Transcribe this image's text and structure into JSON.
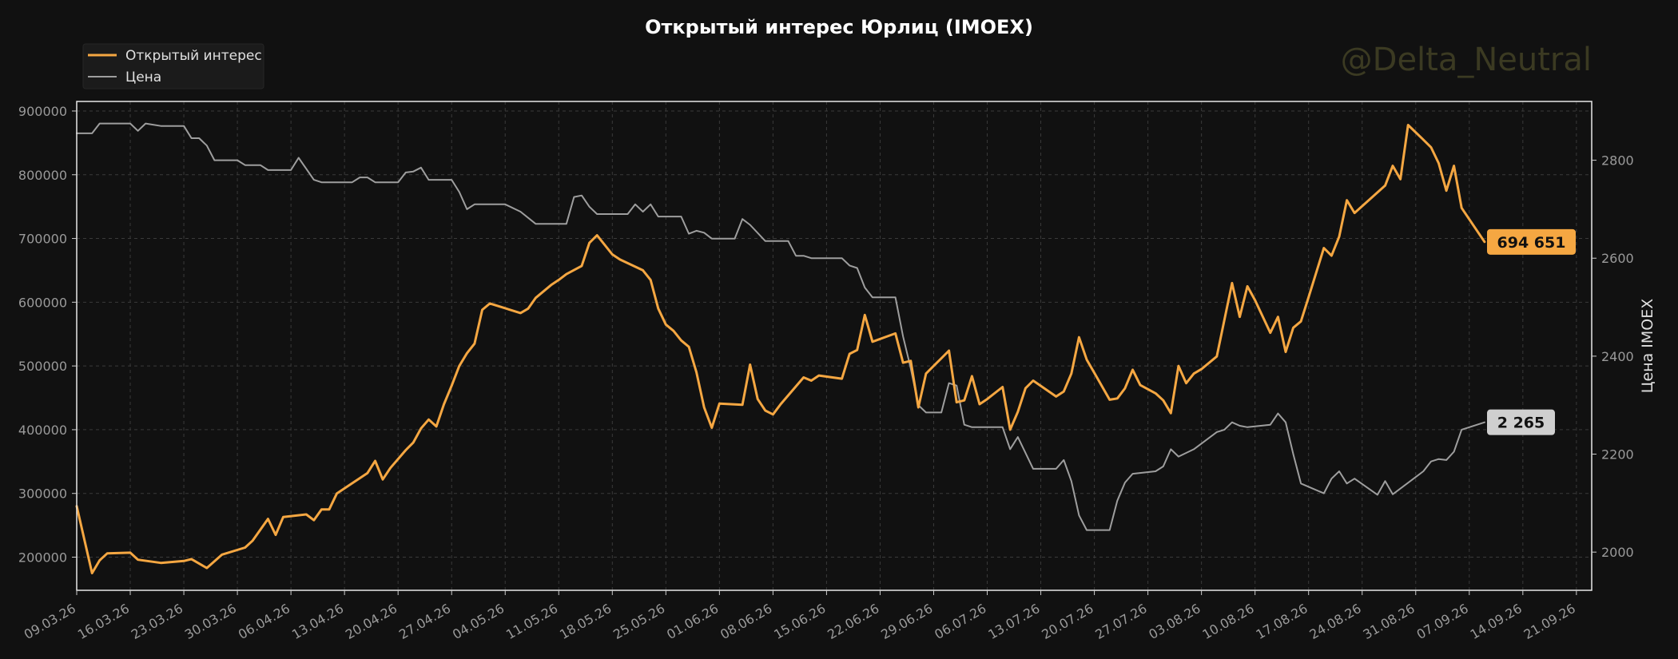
{
  "chart_data": {
    "type": "line",
    "title": "Открытый интерес Юрлиц (IMOEX)",
    "watermark": "@Delta_Neutral",
    "ylabel_right": "Цена IMOEX",
    "legend_placement": "top-left",
    "grid": true,
    "colors": {
      "oi": "#F5A742",
      "price": "#9E9E9E",
      "background": "#111111"
    },
    "ylim_left": [
      148000,
      915000
    ],
    "ylim_right": [
      1922,
      2920
    ],
    "xlim": [
      "09.03.26",
      "23.09.26"
    ],
    "x_ticks": [
      "09.03.26",
      "16.03.26",
      "23.03.26",
      "30.03.26",
      "06.04.26",
      "13.04.26",
      "20.04.26",
      "27.04.26",
      "04.05.26",
      "11.05.26",
      "18.05.26",
      "25.05.26",
      "01.06.26",
      "08.06.26",
      "15.06.26",
      "22.06.26",
      "29.06.26",
      "06.07.26",
      "13.07.26",
      "20.07.26",
      "27.07.26",
      "03.08.26",
      "10.08.26",
      "17.08.26",
      "24.08.26",
      "31.08.26",
      "07.09.26",
      "14.09.26",
      "21.09.26"
    ],
    "y_ticks_left": [
      "200000",
      "300000",
      "400000",
      "500000",
      "600000",
      "700000",
      "800000",
      "900000"
    ],
    "y_ticks_right": [
      "2000",
      "2200",
      "2400",
      "2600",
      "2800"
    ],
    "series": [
      {
        "name": "Открытый интерес",
        "axis": "left",
        "last_label": "694 651",
        "points": [
          [
            "09.03.26",
            280000
          ],
          [
            "11.03.26",
            175000
          ],
          [
            "12.03.26",
            195000
          ],
          [
            "13.03.26",
            206000
          ],
          [
            "16.03.26",
            207000
          ],
          [
            "17.03.26",
            196000
          ],
          [
            "20.03.26",
            191000
          ],
          [
            "23.03.26",
            194000
          ],
          [
            "24.03.26",
            197000
          ],
          [
            "26.03.26",
            183000
          ],
          [
            "28.03.26",
            204000
          ],
          [
            "31.03.26",
            215000
          ],
          [
            "01.04.26",
            226000
          ],
          [
            "03.04.26",
            260000
          ],
          [
            "04.04.26",
            235000
          ],
          [
            "05.04.26",
            263000
          ],
          [
            "08.04.26",
            267000
          ],
          [
            "09.04.26",
            258000
          ],
          [
            "10.04.26",
            275000
          ],
          [
            "11.04.26",
            275000
          ],
          [
            "12.04.26",
            300000
          ],
          [
            "14.04.26",
            316000
          ],
          [
            "16.04.26",
            332000
          ],
          [
            "17.04.26",
            351000
          ],
          [
            "18.04.26",
            322000
          ],
          [
            "19.04.26",
            340000
          ],
          [
            "21.04.26",
            368000
          ],
          [
            "22.04.26",
            380000
          ],
          [
            "23.04.26",
            402000
          ],
          [
            "24.04.26",
            416000
          ],
          [
            "25.04.26",
            405000
          ],
          [
            "26.04.26",
            440000
          ],
          [
            "27.04.26",
            469000
          ],
          [
            "28.04.26",
            500000
          ],
          [
            "29.04.26",
            520000
          ],
          [
            "30.04.26",
            535000
          ],
          [
            "01.05.26",
            588000
          ],
          [
            "02.05.26",
            598000
          ],
          [
            "06.05.26",
            583000
          ],
          [
            "07.05.26",
            590000
          ],
          [
            "08.05.26",
            607000
          ],
          [
            "10.05.26",
            627000
          ],
          [
            "11.05.26",
            635000
          ],
          [
            "12.05.26",
            644000
          ],
          [
            "14.05.26",
            657000
          ],
          [
            "15.05.26",
            693000
          ],
          [
            "16.05.26",
            705000
          ],
          [
            "18.05.26",
            675000
          ],
          [
            "19.05.26",
            667000
          ],
          [
            "22.05.26",
            650000
          ],
          [
            "23.05.26",
            635000
          ],
          [
            "24.05.26",
            590000
          ],
          [
            "25.05.26",
            565000
          ],
          [
            "26.05.26",
            555000
          ],
          [
            "27.05.26",
            540000
          ],
          [
            "28.05.26",
            530000
          ],
          [
            "29.05.26",
            490000
          ],
          [
            "30.05.26",
            435000
          ],
          [
            "31.05.26",
            403000
          ],
          [
            "01.06.26",
            441000
          ],
          [
            "04.06.26",
            439000
          ],
          [
            "05.06.26",
            502000
          ],
          [
            "06.06.26",
            448000
          ],
          [
            "07.06.26",
            430000
          ],
          [
            "08.06.26",
            424000
          ],
          [
            "09.06.26",
            440000
          ],
          [
            "12.06.26",
            482000
          ],
          [
            "13.06.26",
            477000
          ],
          [
            "14.06.26",
            485000
          ],
          [
            "17.06.26",
            480000
          ],
          [
            "18.06.26",
            519000
          ],
          [
            "19.06.26",
            525000
          ],
          [
            "20.06.26",
            580000
          ],
          [
            "21.06.26",
            538000
          ],
          [
            "24.06.26",
            551000
          ],
          [
            "25.06.26",
            505000
          ],
          [
            "26.06.26",
            508000
          ],
          [
            "27.06.26",
            435000
          ],
          [
            "28.06.26",
            488000
          ],
          [
            "29.06.26",
            500000
          ],
          [
            "30.06.26",
            512000
          ],
          [
            "01.07.26",
            524000
          ],
          [
            "02.07.26",
            443000
          ],
          [
            "03.07.26",
            446000
          ],
          [
            "04.07.26",
            484000
          ],
          [
            "05.07.26",
            440000
          ],
          [
            "06.07.26",
            448000
          ],
          [
            "08.07.26",
            467000
          ],
          [
            "09.07.26",
            400000
          ],
          [
            "10.07.26",
            428000
          ],
          [
            "11.07.26",
            465000
          ],
          [
            "12.07.26",
            477000
          ],
          [
            "15.07.26",
            452000
          ],
          [
            "16.07.26",
            460000
          ],
          [
            "17.07.26",
            488000
          ],
          [
            "18.07.26",
            545000
          ],
          [
            "19.07.26",
            510000
          ],
          [
            "20.07.26",
            489000
          ],
          [
            "22.07.26",
            447000
          ],
          [
            "23.07.26",
            449000
          ],
          [
            "24.07.26",
            465000
          ],
          [
            "25.07.26",
            494000
          ],
          [
            "26.07.26",
            470000
          ],
          [
            "28.07.26",
            457000
          ],
          [
            "29.07.26",
            446000
          ],
          [
            "30.07.26",
            426000
          ],
          [
            "31.07.26",
            500000
          ],
          [
            "01.08.26",
            473000
          ],
          [
            "02.08.26",
            488000
          ],
          [
            "03.08.26",
            495000
          ],
          [
            "05.08.26",
            515000
          ],
          [
            "07.08.26",
            630000
          ],
          [
            "08.08.26",
            577000
          ],
          [
            "09.08.26",
            625000
          ],
          [
            "10.08.26",
            603000
          ],
          [
            "12.08.26",
            552000
          ],
          [
            "13.08.26",
            577000
          ],
          [
            "14.08.26",
            522000
          ],
          [
            "15.08.26",
            560000
          ],
          [
            "16.08.26",
            570000
          ],
          [
            "17.08.26",
            608000
          ],
          [
            "19.08.26",
            685000
          ],
          [
            "20.08.26",
            673000
          ],
          [
            "21.08.26",
            703000
          ],
          [
            "22.08.26",
            760000
          ],
          [
            "23.08.26",
            740000
          ],
          [
            "27.08.26",
            783000
          ],
          [
            "28.08.26",
            814000
          ],
          [
            "29.08.26",
            793000
          ],
          [
            "30.08.26",
            878000
          ],
          [
            "01.09.26",
            855000
          ],
          [
            "02.09.26",
            843000
          ],
          [
            "03.09.26",
            818000
          ],
          [
            "04.09.26",
            775000
          ],
          [
            "05.09.26",
            814000
          ],
          [
            "06.09.26",
            748000
          ],
          [
            "09.09.26",
            694651
          ]
        ]
      },
      {
        "name": "Цена",
        "axis": "right",
        "last_label": "2 265",
        "points": [
          [
            "09.03.26",
            2855
          ],
          [
            "11.03.26",
            2855
          ],
          [
            "12.03.26",
            2875
          ],
          [
            "16.03.26",
            2875
          ],
          [
            "17.03.26",
            2860
          ],
          [
            "18.03.26",
            2875
          ],
          [
            "20.03.26",
            2870
          ],
          [
            "23.03.26",
            2870
          ],
          [
            "24.03.26",
            2845
          ],
          [
            "25.03.26",
            2845
          ],
          [
            "26.03.26",
            2830
          ],
          [
            "27.03.26",
            2800
          ],
          [
            "30.03.26",
            2800
          ],
          [
            "31.03.26",
            2790
          ],
          [
            "02.04.26",
            2790
          ],
          [
            "03.04.26",
            2780
          ],
          [
            "06.04.26",
            2780
          ],
          [
            "07.04.26",
            2805
          ],
          [
            "09.04.26",
            2760
          ],
          [
            "10.04.26",
            2755
          ],
          [
            "14.04.26",
            2755
          ],
          [
            "15.04.26",
            2765
          ],
          [
            "16.04.26",
            2765
          ],
          [
            "17.04.26",
            2755
          ],
          [
            "20.04.26",
            2755
          ],
          [
            "21.04.26",
            2775
          ],
          [
            "22.04.26",
            2777
          ],
          [
            "23.04.26",
            2785
          ],
          [
            "24.04.26",
            2760
          ],
          [
            "27.04.26",
            2760
          ],
          [
            "28.04.26",
            2735
          ],
          [
            "29.04.26",
            2700
          ],
          [
            "30.04.26",
            2710
          ],
          [
            "04.05.26",
            2710
          ],
          [
            "06.05.26",
            2695
          ],
          [
            "08.05.26",
            2670
          ],
          [
            "11.05.26",
            2670
          ],
          [
            "12.05.26",
            2670
          ],
          [
            "13.05.26",
            2725
          ],
          [
            "14.05.26",
            2728
          ],
          [
            "15.05.26",
            2705
          ],
          [
            "16.05.26",
            2690
          ],
          [
            "19.05.26",
            2690
          ],
          [
            "20.05.26",
            2690
          ],
          [
            "21.05.26",
            2710
          ],
          [
            "22.05.26",
            2695
          ],
          [
            "23.05.26",
            2710
          ],
          [
            "24.05.26",
            2685
          ],
          [
            "27.05.26",
            2685
          ],
          [
            "28.05.26",
            2650
          ],
          [
            "29.05.26",
            2656
          ],
          [
            "30.05.26",
            2652
          ],
          [
            "31.05.26",
            2640
          ],
          [
            "03.06.26",
            2640
          ],
          [
            "04.06.26",
            2680
          ],
          [
            "05.06.26",
            2668
          ],
          [
            "07.06.26",
            2635
          ],
          [
            "10.06.26",
            2635
          ],
          [
            "11.06.26",
            2605
          ],
          [
            "12.06.26",
            2605
          ],
          [
            "13.06.26",
            2600
          ],
          [
            "17.06.26",
            2600
          ],
          [
            "18.06.26",
            2585
          ],
          [
            "19.06.26",
            2580
          ],
          [
            "20.06.26",
            2540
          ],
          [
            "21.06.26",
            2520
          ],
          [
            "24.06.26",
            2520
          ],
          [
            "25.06.26",
            2440
          ],
          [
            "26.06.26",
            2375
          ],
          [
            "27.06.26",
            2300
          ],
          [
            "28.06.26",
            2285
          ],
          [
            "29.06.26",
            2285
          ],
          [
            "30.06.26",
            2285
          ],
          [
            "01.07.26",
            2345
          ],
          [
            "02.07.26",
            2340
          ],
          [
            "03.07.26",
            2260
          ],
          [
            "04.07.26",
            2255
          ],
          [
            "05.07.26",
            2255
          ],
          [
            "08.07.26",
            2255
          ],
          [
            "09.07.26",
            2210
          ],
          [
            "10.07.26",
            2235
          ],
          [
            "12.07.26",
            2170
          ],
          [
            "15.07.26",
            2170
          ],
          [
            "16.07.26",
            2188
          ],
          [
            "17.07.26",
            2145
          ],
          [
            "18.07.26",
            2075
          ],
          [
            "19.07.26",
            2045
          ],
          [
            "22.07.26",
            2045
          ],
          [
            "23.07.26",
            2105
          ],
          [
            "24.07.26",
            2142
          ],
          [
            "25.07.26",
            2160
          ],
          [
            "28.07.26",
            2165
          ],
          [
            "29.07.26",
            2175
          ],
          [
            "30.07.26",
            2210
          ],
          [
            "31.07.26",
            2195
          ],
          [
            "02.08.26",
            2210
          ],
          [
            "05.08.26",
            2245
          ],
          [
            "06.08.26",
            2250
          ],
          [
            "07.08.26",
            2265
          ],
          [
            "08.08.26",
            2258
          ],
          [
            "09.08.26",
            2255
          ],
          [
            "12.08.26",
            2260
          ],
          [
            "13.08.26",
            2283
          ],
          [
            "14.08.26",
            2265
          ],
          [
            "15.08.26",
            2200
          ],
          [
            "16.08.26",
            2140
          ],
          [
            "19.08.26",
            2120
          ],
          [
            "20.08.26",
            2150
          ],
          [
            "21.08.26",
            2165
          ],
          [
            "22.08.26",
            2140
          ],
          [
            "23.08.26",
            2150
          ],
          [
            "26.08.26",
            2117
          ],
          [
            "27.08.26",
            2145
          ],
          [
            "28.08.26",
            2118
          ],
          [
            "01.09.26",
            2165
          ],
          [
            "02.09.26",
            2185
          ],
          [
            "03.09.26",
            2190
          ],
          [
            "04.09.26",
            2188
          ],
          [
            "05.09.26",
            2205
          ],
          [
            "06.09.26",
            2250
          ],
          [
            "09.09.26",
            2265
          ]
        ]
      }
    ]
  }
}
